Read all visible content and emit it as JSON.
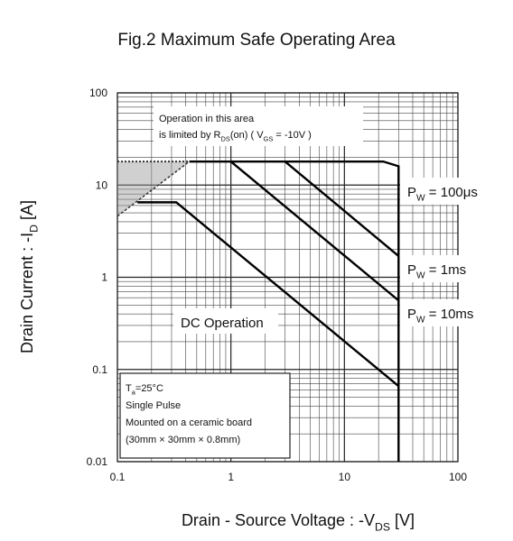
{
  "chart_data": {
    "type": "line",
    "title": "Fig.2 Maximum Safe Operating Area",
    "x_label": [
      "Drain - Source Voltage : -V",
      "DS",
      " [V]"
    ],
    "y_label": [
      "Drain Current : -I",
      "D",
      " [A]"
    ],
    "log_x": true,
    "log_y": true,
    "grid": true,
    "xlim": [
      0.1,
      100
    ],
    "xticks": [
      0.1,
      1,
      10,
      100
    ],
    "ylim": [
      0.01,
      100
    ],
    "yticks": [
      0.01,
      0.1,
      1,
      10,
      100
    ],
    "series": [
      {
        "label": [
          "P",
          "W",
          " = 100μs"
        ],
        "color": "#000000",
        "x": [
          0.43,
          22,
          30,
          30
        ],
        "values": [
          18,
          18,
          16,
          0.01
        ]
      },
      {
        "label": [
          "P",
          "W",
          " = 1ms"
        ],
        "color": "#000000",
        "x": [
          3,
          30
        ],
        "values": [
          18,
          1.7
        ]
      },
      {
        "label": [
          "P",
          "W",
          " = 10ms"
        ],
        "color": "#000000",
        "x": [
          1,
          30
        ],
        "values": [
          18,
          0.56
        ]
      },
      {
        "label": [
          "DC Operation"
        ],
        "color": "#000000",
        "x": [
          0.15,
          0.33,
          30
        ],
        "values": [
          6.5,
          6.5,
          0.066
        ]
      }
    ],
    "rds_limit": {
      "x": [
        0.1,
        0.43
      ],
      "values": [
        4.6,
        18
      ],
      "top": 18,
      "text": [
        [
          "Operation in this area"
        ],
        [
          "is limited by R",
          "DS",
          "(on) ( V",
          "GS",
          " = -10V )"
        ]
      ]
    },
    "conditions": [
      [
        "T",
        "a",
        "=25°C"
      ],
      [
        "Single Pulse"
      ],
      [
        "Mounted on a ceramic board"
      ],
      [
        "(30mm × 30mm × 0.8mm)"
      ]
    ]
  }
}
